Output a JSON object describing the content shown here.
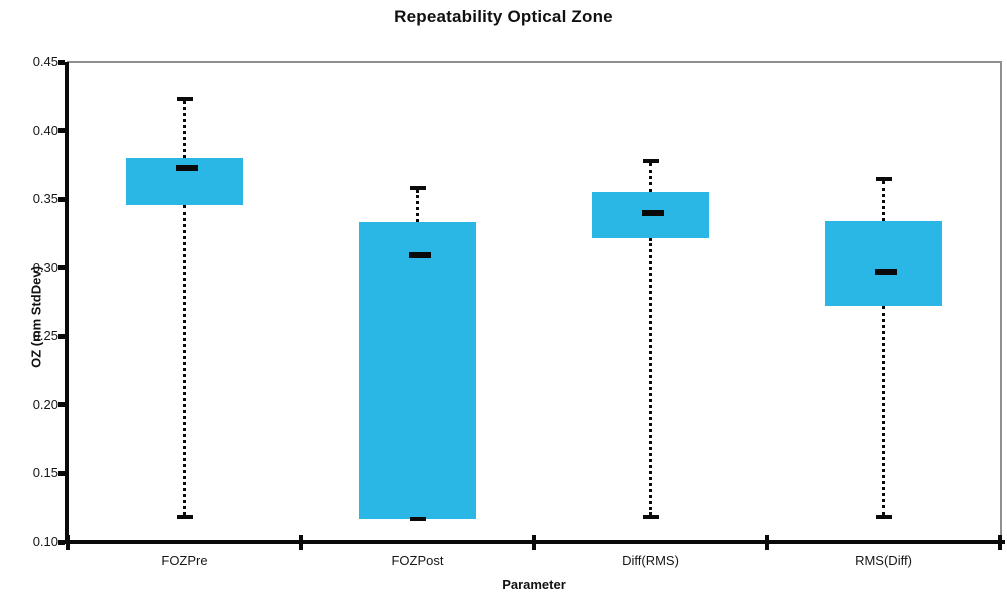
{
  "chart_data": {
    "type": "boxplot",
    "title": "Repeatability Optical Zone",
    "xlabel": "Parameter",
    "ylabel": "OZ (mm StdDev)",
    "ylim": [
      0.1,
      0.45
    ],
    "yticks": [
      "0.45",
      "0.40",
      "0.35",
      "0.30",
      "0.25",
      "0.20",
      "0.15",
      "0.10"
    ],
    "categories": [
      "FOZPre",
      "FOZPost",
      "Diff(RMS)",
      "RMS(Diff)"
    ],
    "series": [
      {
        "category": "FOZPre",
        "whisker_low": 0.118,
        "q1": 0.346,
        "median": 0.373,
        "q3": 0.38,
        "whisker_high": 0.423
      },
      {
        "category": "FOZPost",
        "whisker_low": 0.117,
        "q1": 0.117,
        "median": 0.309,
        "q3": 0.333,
        "whisker_high": 0.358
      },
      {
        "category": "Diff(RMS)",
        "whisker_low": 0.118,
        "q1": 0.322,
        "median": 0.34,
        "q3": 0.355,
        "whisker_high": 0.378
      },
      {
        "category": "RMS(Diff)",
        "whisker_low": 0.118,
        "q1": 0.272,
        "median": 0.297,
        "q3": 0.334,
        "whisker_high": 0.365
      }
    ],
    "box_color": "#2BB7E6",
    "line_color": "#0a0a0a",
    "grid": false,
    "legend_position": "none"
  }
}
